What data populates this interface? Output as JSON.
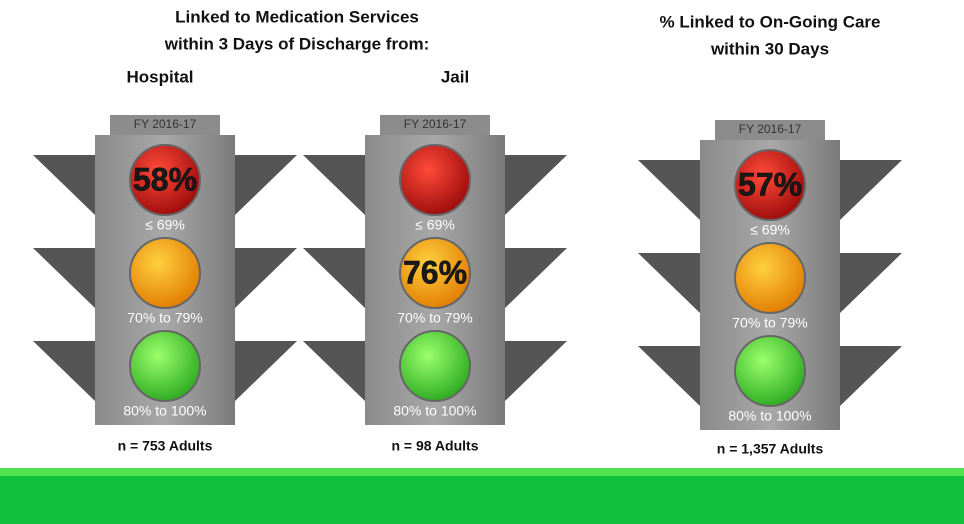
{
  "headings": {
    "left": [
      "Linked to Medication Services",
      "within 3 Days of Discharge from:"
    ],
    "right": [
      "% Linked to On-Going Care",
      "within 30 Days"
    ]
  },
  "lights": [
    {
      "label": "Hospital",
      "fy": "FY 2016-17",
      "value": "58%",
      "active": "red",
      "levels": [
        "≤ 69%",
        "70% to 79%",
        "80% to 100%"
      ],
      "n": "n = 753 Adults"
    },
    {
      "label": "Jail",
      "fy": "FY 2016-17",
      "value": "76%",
      "active": "amber",
      "levels": [
        "≤ 69%",
        "70% to 79%",
        "80% to 100%"
      ],
      "n": "n = 98 Adults"
    },
    {
      "fy": "FY 2016-17",
      "value": "57%",
      "active": "red",
      "levels": [
        "≤ 69%",
        "70% to 79%",
        "80% to 100%"
      ],
      "n": "n = 1,357 Adults"
    }
  ]
}
